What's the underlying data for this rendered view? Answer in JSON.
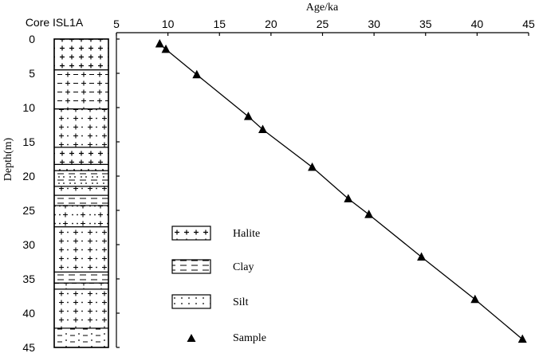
{
  "chart_data": {
    "type": "line",
    "title": "",
    "core_label": "Core ISL1A",
    "xlabel": "Age/ka",
    "ylabel": "Depth(m)",
    "xlim": [
      5,
      45
    ],
    "ylim": [
      0,
      45
    ],
    "x_axis_position": "top",
    "y_inverted": true,
    "grid": false,
    "x_ticks": [
      "5",
      "10",
      "15",
      "20",
      "25",
      "30",
      "35",
      "40",
      "45"
    ],
    "y_ticks": [
      "0",
      "5",
      "10",
      "15",
      "20",
      "25",
      "30",
      "35",
      "40",
      "45"
    ],
    "series": [
      {
        "marker": "triangle",
        "color": "#000000",
        "x": [
          9.2,
          9.8,
          12.8,
          17.8,
          19.2,
          24.0,
          27.5,
          29.5,
          34.6,
          39.8,
          44.4
        ],
        "y": [
          0.7,
          1.5,
          5.2,
          11.3,
          13.2,
          18.7,
          23.3,
          25.6,
          31.8,
          38.0,
          43.8
        ]
      }
    ],
    "lithology": [
      {
        "from": 0.0,
        "to": 4.5,
        "type": "halite"
      },
      {
        "from": 4.5,
        "to": 10.2,
        "type": "halite-clay"
      },
      {
        "from": 10.2,
        "to": 15.8,
        "type": "halite-silt"
      },
      {
        "from": 15.8,
        "to": 18.3,
        "type": "halite"
      },
      {
        "from": 18.3,
        "to": 19.2,
        "type": "silt"
      },
      {
        "from": 19.2,
        "to": 21.5,
        "type": "clay-silt"
      },
      {
        "from": 21.5,
        "to": 22.8,
        "type": "halite-silt"
      },
      {
        "from": 22.8,
        "to": 24.3,
        "type": "clay"
      },
      {
        "from": 24.3,
        "to": 27.4,
        "type": "silt-halite"
      },
      {
        "from": 27.4,
        "to": 34.0,
        "type": "halite-silt"
      },
      {
        "from": 34.0,
        "to": 35.6,
        "type": "clay"
      },
      {
        "from": 35.6,
        "to": 36.5,
        "type": "clay-halite"
      },
      {
        "from": 36.5,
        "to": 42.2,
        "type": "halite-silt"
      },
      {
        "from": 42.2,
        "to": 45.0,
        "type": "silt-clay"
      }
    ],
    "legend": {
      "placement": "lower-middle",
      "items": [
        {
          "label": "Halite",
          "symbol": "halite"
        },
        {
          "label": "Clay",
          "symbol": "clay"
        },
        {
          "label": "Silt",
          "symbol": "silt"
        },
        {
          "label": "Sample",
          "symbol": "triangle"
        }
      ]
    }
  }
}
